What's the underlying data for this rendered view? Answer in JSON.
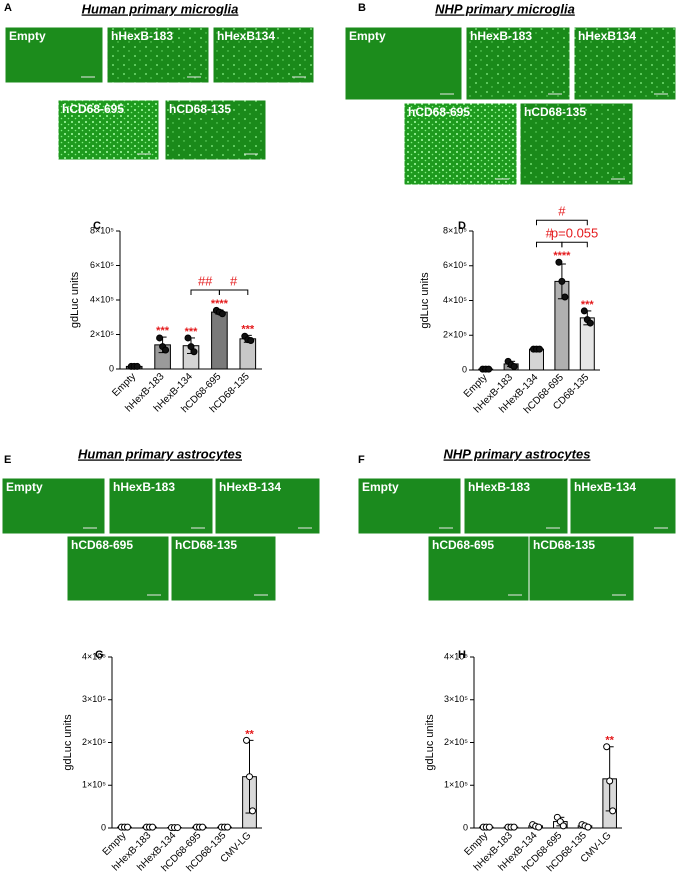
{
  "panels": [
    {
      "letter": "A",
      "title": "Human primary microglia",
      "images": [
        "Empty",
        "hHexB-183",
        "hHexB134",
        "hCD68-695",
        "hCD68-135"
      ]
    },
    {
      "letter": "B",
      "title": "NHP primary microglia",
      "images": [
        "Empty",
        "hHexB-183",
        "hHexB134",
        "hCD68-695",
        "hCD68-135"
      ]
    },
    {
      "letter": "E",
      "title": "Human primary astrocytes",
      "images": [
        "Empty",
        "hHexB-183",
        "hHexB-134",
        "hCD68-695",
        "hCD68-135"
      ]
    },
    {
      "letter": "F",
      "title": "NHP primary astrocytes",
      "images": [
        "Empty",
        "hHexB-183",
        "hHexB-134",
        "hCD68-695",
        "hCD68-135"
      ]
    }
  ],
  "chart_data": [
    {
      "type": "bar",
      "panel_label": "C",
      "y_label": "gdLuc units",
      "categories": [
        "Empty",
        "hHexB-183",
        "hHexB-134",
        "hCD68-695",
        "hCD68-135"
      ],
      "values": [
        15000,
        140000,
        135000,
        330000,
        175000
      ],
      "errors": [
        2000,
        45000,
        45000,
        12000,
        20000
      ],
      "points": [
        [
          15000,
          15000,
          15000
        ],
        [
          180000,
          130000,
          110000
        ],
        [
          180000,
          130000,
          100000
        ],
        [
          340000,
          330000,
          320000
        ],
        [
          190000,
          170000,
          165000
        ]
      ],
      "colors": [
        "#555555",
        "#9a9a9a",
        "#d4d4d4",
        "#7a7a7a",
        "#c8c8c8"
      ],
      "point_fill": "#111111",
      "stars": [
        null,
        "***",
        "***",
        "****",
        "***"
      ],
      "brackets": [
        {
          "from": "hHexB-134",
          "to": "hCD68-695",
          "label": "##"
        },
        {
          "from": "hCD68-695",
          "to": "hCD68-135",
          "label": "#"
        }
      ],
      "ylim": [
        0,
        800000
      ],
      "yticks": [
        0,
        {
          "value": 200000,
          "label": "2×10⁵"
        },
        {
          "value": 400000,
          "label": "4×10⁵"
        },
        {
          "value": 600000,
          "label": "6×10⁵"
        },
        {
          "value": 800000,
          "label": "8×10⁵"
        }
      ]
    },
    {
      "type": "bar",
      "panel_label": "D",
      "y_label": "gdLuc units",
      "categories": [
        "Empty",
        "hHexB-183",
        "hHexB-134",
        "hCD68-695",
        "CD68-135"
      ],
      "values": [
        5000,
        35000,
        120000,
        510000,
        300000
      ],
      "errors": [
        1000,
        15000,
        3000,
        100000,
        40000
      ],
      "points": [
        [
          5000,
          5000,
          5000
        ],
        [
          50000,
          30000,
          20000
        ],
        [
          120000,
          120000,
          120000
        ],
        [
          620000,
          510000,
          420000
        ],
        [
          340000,
          290000,
          270000
        ]
      ],
      "colors": [
        "#555555",
        "#9a9a9a",
        "#d4d4d4",
        "#b0b0b0",
        "#e6e6e6"
      ],
      "point_fill": "#111111",
      "stars": [
        null,
        null,
        null,
        "****",
        "***"
      ],
      "brackets": [
        {
          "from": "hHexB-134",
          "to": "hCD68-695",
          "label": "#"
        },
        {
          "from": "hCD68-695",
          "to": "CD68-135",
          "label": "p=0.055"
        },
        {
          "from": "hHexB-134",
          "to": "CD68-135",
          "label": "#"
        }
      ],
      "ylim": [
        0,
        800000
      ],
      "yticks": [
        0,
        {
          "value": 200000,
          "label": "2×10⁵"
        },
        {
          "value": 400000,
          "label": "4×10⁵"
        },
        {
          "value": 600000,
          "label": "6×10⁵"
        },
        {
          "value": 800000,
          "label": "8×10⁵"
        }
      ]
    },
    {
      "type": "bar",
      "panel_label": "G",
      "y_label": "gdLuc units",
      "categories": [
        "Empty",
        "hHexB-183",
        "hHexB-134",
        "hCD68-695",
        "hCD68-135",
        "CMV-LG"
      ],
      "values": [
        2000,
        2000,
        1000,
        2000,
        2000,
        120000
      ],
      "errors": [
        500,
        500,
        500,
        500,
        500,
        85000
      ],
      "points": [
        [
          2000,
          2000,
          2000
        ],
        [
          2000,
          2000,
          2000
        ],
        [
          1000,
          1000,
          1000
        ],
        [
          2000,
          2000,
          2000
        ],
        [
          2000,
          2000,
          2000
        ],
        [
          205000,
          120000,
          40000
        ]
      ],
      "colors": [
        "#ffffff",
        "#ffffff",
        "#ffffff",
        "#ffffff",
        "#ffffff",
        "#d9d9d9"
      ],
      "point_fill": "#ffffff",
      "stars": [
        null,
        null,
        null,
        null,
        null,
        "**"
      ],
      "brackets": [],
      "ylim": [
        0,
        400000
      ],
      "yticks": [
        0,
        {
          "value": 100000,
          "label": "1×10⁵"
        },
        {
          "value": 200000,
          "label": "2×10⁵"
        },
        {
          "value": 300000,
          "label": "3×10⁵"
        },
        {
          "value": 400000,
          "label": "4×10⁵"
        }
      ]
    },
    {
      "type": "bar",
      "panel_label": "H",
      "y_label": "gdLuc units",
      "categories": [
        "Empty",
        "hHexB-183",
        "hHexB-134",
        "hCD68-695",
        "hCD68-135",
        "CMV-LG"
      ],
      "values": [
        2000,
        2000,
        5000,
        15000,
        5000,
        115000
      ],
      "errors": [
        500,
        500,
        3000,
        10000,
        3000,
        75000
      ],
      "points": [
        [
          2000,
          2000,
          2000
        ],
        [
          2000,
          2000,
          2000
        ],
        [
          8000,
          4000,
          2000
        ],
        [
          25000,
          15000,
          5000
        ],
        [
          8000,
          5000,
          2000
        ],
        [
          190000,
          110000,
          40000
        ]
      ],
      "colors": [
        "#ffffff",
        "#ffffff",
        "#ffffff",
        "#ffffff",
        "#ffffff",
        "#d9d9d9"
      ],
      "point_fill": "#ffffff",
      "stars": [
        null,
        null,
        null,
        null,
        null,
        "**"
      ],
      "brackets": [],
      "ylim": [
        0,
        400000
      ],
      "yticks": [
        0,
        {
          "value": 100000,
          "label": "1×10⁵"
        },
        {
          "value": 200000,
          "label": "2×10⁵"
        },
        {
          "value": 300000,
          "label": "3×10⁵"
        },
        {
          "value": 400000,
          "label": "4×10⁵"
        }
      ]
    }
  ]
}
